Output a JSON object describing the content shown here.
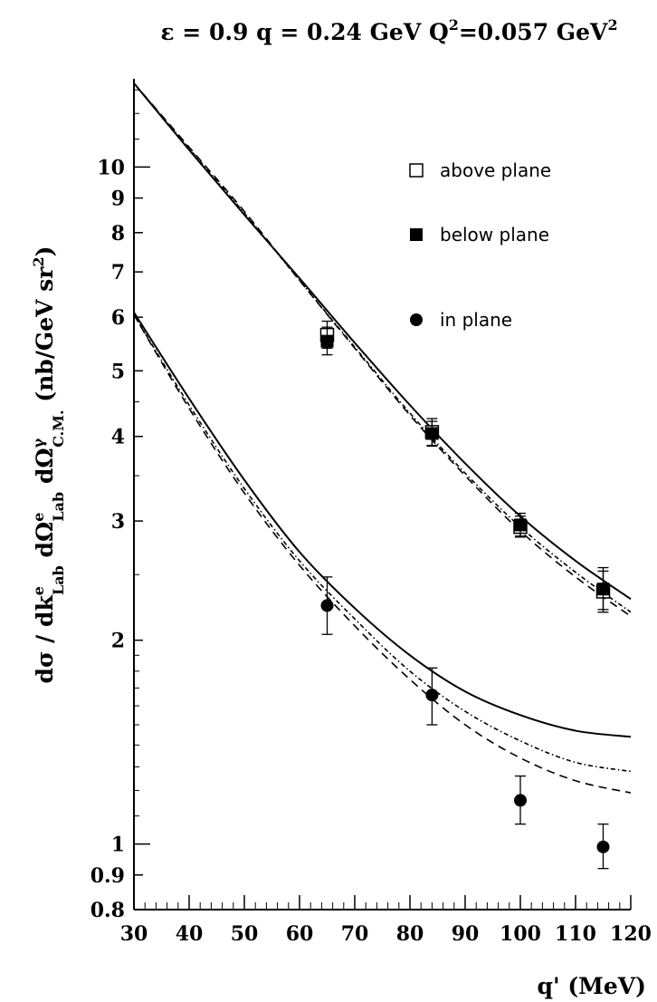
{
  "chart_data": {
    "type": "line",
    "title": {
      "part1": "ε = 0.9  q = 0.24 GeV Q",
      "sup1": "2",
      "part2": "=0.057 GeV",
      "sup2": "2"
    },
    "xlabel": "q' (MeV)",
    "ylabel": {
      "p1": "dσ / dk",
      "p1sup": "e",
      "p1sub": "Lab",
      "p2": " dΩ",
      "p2sup": "e",
      "p2sub": "Lab",
      "p3": " dΩ",
      "p3sup": "γ",
      "p3sub": "C.M.",
      "p4": " (nb/GeV sr",
      "p4sup": "2",
      "p5": ")"
    },
    "x_scale": "linear",
    "y_scale": "log",
    "xlim": [
      30,
      120
    ],
    "ylim": [
      0.8,
      13.5
    ],
    "x_ticks": [
      30,
      40,
      50,
      60,
      70,
      80,
      90,
      100,
      110,
      120
    ],
    "y_ticks": [
      0.8,
      0.9,
      1,
      2,
      3,
      4,
      5,
      6,
      7,
      8,
      9,
      10
    ],
    "grid": false,
    "legend_position": "top-right",
    "legend": [
      {
        "label": "above plane",
        "marker": "open-square"
      },
      {
        "label": "below plane",
        "marker": "filled-square"
      },
      {
        "label": "in plane",
        "marker": "filled-circle"
      }
    ],
    "points": [
      {
        "series": "above plane",
        "marker": "open-square",
        "data": [
          {
            "x": 65,
            "y": 5.65,
            "lo": 5.4,
            "hi": 5.92
          },
          {
            "x": 84,
            "y": 4.06,
            "lo": 3.88,
            "hi": 4.25
          },
          {
            "x": 100,
            "y": 2.94,
            "lo": 2.84,
            "hi": 3.05
          },
          {
            "x": 115,
            "y": 2.36,
            "lo": 2.2,
            "hi": 2.53
          }
        ]
      },
      {
        "series": "below plane",
        "marker": "filled-square",
        "data": [
          {
            "x": 65,
            "y": 5.53,
            "lo": 5.28,
            "hi": 5.8
          },
          {
            "x": 84,
            "y": 4.04,
            "lo": 3.87,
            "hi": 4.21
          },
          {
            "x": 100,
            "y": 2.96,
            "lo": 2.85,
            "hi": 3.08
          },
          {
            "x": 115,
            "y": 2.38,
            "lo": 2.22,
            "hi": 2.56
          }
        ]
      },
      {
        "series": "in plane",
        "marker": "filled-circle",
        "data": [
          {
            "x": 65,
            "y": 2.25,
            "lo": 2.04,
            "hi": 2.48
          },
          {
            "x": 84,
            "y": 1.66,
            "lo": 1.5,
            "hi": 1.82
          },
          {
            "x": 100,
            "y": 1.16,
            "lo": 1.07,
            "hi": 1.26
          },
          {
            "x": 115,
            "y": 0.99,
            "lo": 0.92,
            "hi": 1.07
          }
        ]
      }
    ],
    "curves": [
      {
        "group": "upper",
        "style": "solid",
        "x": [
          30,
          40,
          50,
          60,
          70,
          80,
          90,
          100,
          110,
          120
        ],
        "y": [
          13.3,
          10.6,
          8.5,
          6.85,
          5.5,
          4.45,
          3.65,
          3.05,
          2.62,
          2.3
        ]
      },
      {
        "group": "upper",
        "style": "dashed",
        "x": [
          30,
          40,
          50,
          60,
          70,
          80,
          90,
          100,
          110,
          120
        ],
        "y": [
          13.3,
          10.7,
          8.6,
          6.8,
          5.4,
          4.3,
          3.5,
          2.9,
          2.48,
          2.17
        ]
      },
      {
        "group": "upper",
        "style": "dash-dot",
        "x": [
          30,
          40,
          50,
          60,
          70,
          80,
          90,
          100,
          110,
          120
        ],
        "y": [
          13.3,
          10.65,
          8.55,
          6.8,
          5.42,
          4.33,
          3.53,
          2.94,
          2.52,
          2.2
        ]
      },
      {
        "group": "lower",
        "style": "solid",
        "x": [
          30,
          40,
          50,
          60,
          70,
          80,
          90,
          100,
          110,
          120
        ],
        "y": [
          6.1,
          4.55,
          3.45,
          2.7,
          2.23,
          1.9,
          1.68,
          1.55,
          1.47,
          1.44
        ]
      },
      {
        "group": "lower",
        "style": "dashed",
        "x": [
          30,
          40,
          50,
          60,
          70,
          80,
          90,
          100,
          110,
          120
        ],
        "y": [
          6.05,
          4.4,
          3.3,
          2.58,
          2.1,
          1.75,
          1.5,
          1.34,
          1.24,
          1.19
        ]
      },
      {
        "group": "lower",
        "style": "dash-dot",
        "x": [
          30,
          40,
          50,
          60,
          70,
          80,
          90,
          100,
          110,
          120
        ],
        "y": [
          6.05,
          4.45,
          3.35,
          2.62,
          2.15,
          1.8,
          1.57,
          1.42,
          1.32,
          1.28
        ]
      }
    ]
  }
}
